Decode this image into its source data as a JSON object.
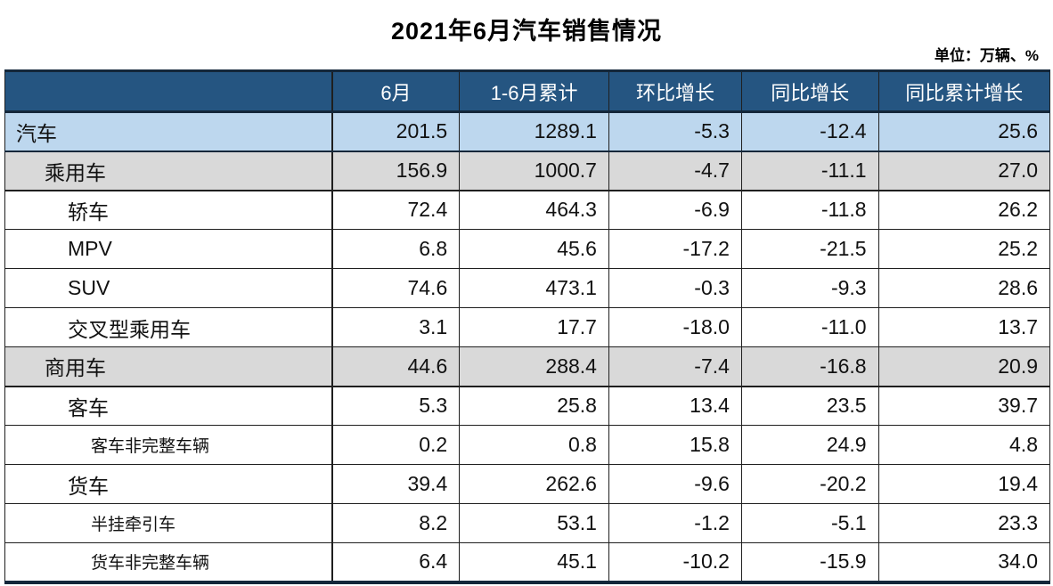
{
  "page": {
    "title": "2021年6月汽车销售情况",
    "unit_note": "单位：万辆、%"
  },
  "colors": {
    "header_bg": "#255581",
    "header_text": "#ffffff",
    "row_blue": "#bdd7ee",
    "row_gray": "#d9d9d9",
    "grid_line": "#1f1f1f",
    "heavy_line": "#14273a",
    "body_text": "#111111"
  },
  "chart_data": {
    "type": "table",
    "title": "2021年6月汽车销售情况",
    "unit": "万辆、%",
    "columns": [
      "",
      "6月",
      "1-6月累计",
      "环比增长",
      "同比增长",
      "同比累计增长"
    ],
    "rows": [
      {
        "label": "汽车",
        "level": 0,
        "row_style": "blue",
        "small_label": false,
        "values": [
          "201.5",
          "1289.1",
          "-5.3",
          "-12.4",
          "25.6"
        ]
      },
      {
        "label": "乘用车",
        "level": 1,
        "row_style": "gray",
        "small_label": false,
        "values": [
          "156.9",
          "1000.7",
          "-4.7",
          "-11.1",
          "27.0"
        ]
      },
      {
        "label": "轿车",
        "level": 2,
        "row_style": "white",
        "small_label": false,
        "values": [
          "72.4",
          "464.3",
          "-6.9",
          "-11.8",
          "26.2"
        ]
      },
      {
        "label": "MPV",
        "level": 2,
        "row_style": "white",
        "small_label": false,
        "values": [
          "6.8",
          "45.6",
          "-17.2",
          "-21.5",
          "25.2"
        ]
      },
      {
        "label": "SUV",
        "level": 2,
        "row_style": "white",
        "small_label": false,
        "values": [
          "74.6",
          "473.1",
          "-0.3",
          "-9.3",
          "28.6"
        ]
      },
      {
        "label": "交叉型乘用车",
        "level": 2,
        "row_style": "white",
        "small_label": false,
        "values": [
          "3.1",
          "17.7",
          "-18.0",
          "-11.0",
          "13.7"
        ]
      },
      {
        "label": "商用车",
        "level": 1,
        "row_style": "gray",
        "small_label": false,
        "values": [
          "44.6",
          "288.4",
          "-7.4",
          "-16.8",
          "20.9"
        ]
      },
      {
        "label": "客车",
        "level": 2,
        "row_style": "white",
        "small_label": false,
        "values": [
          "5.3",
          "25.8",
          "13.4",
          "23.5",
          "39.7"
        ]
      },
      {
        "label": "客车非完整车辆",
        "level": 3,
        "row_style": "white",
        "small_label": true,
        "values": [
          "0.2",
          "0.8",
          "15.8",
          "24.9",
          "4.8"
        ]
      },
      {
        "label": "货车",
        "level": 2,
        "row_style": "white",
        "small_label": false,
        "values": [
          "39.4",
          "262.6",
          "-9.6",
          "-20.2",
          "19.4"
        ]
      },
      {
        "label": "半挂牵引车",
        "level": 3,
        "row_style": "white",
        "small_label": true,
        "values": [
          "8.2",
          "53.1",
          "-1.2",
          "-5.1",
          "23.3"
        ]
      },
      {
        "label": "货车非完整车辆",
        "level": 3,
        "row_style": "white",
        "small_label": true,
        "values": [
          "6.4",
          "45.1",
          "-10.2",
          "-15.9",
          "34.0"
        ]
      }
    ]
  }
}
